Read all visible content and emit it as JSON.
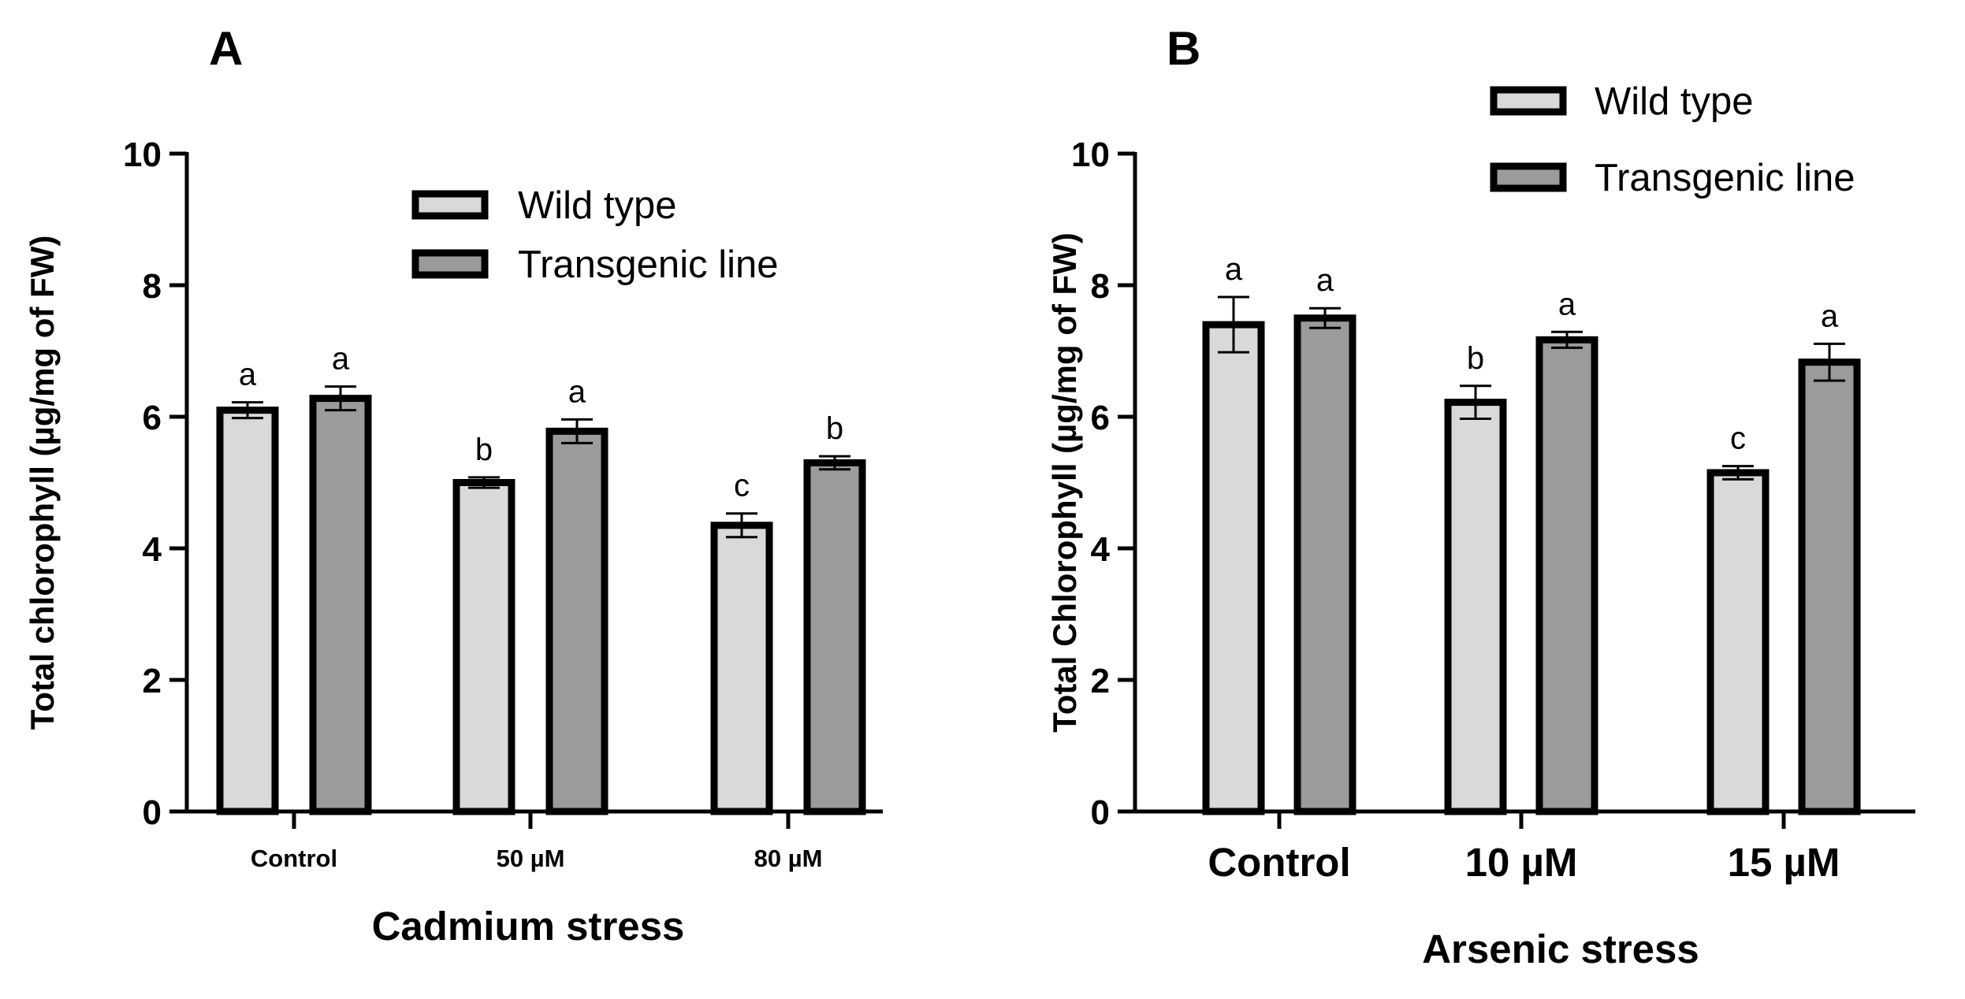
{
  "series_colors": {
    "Wild type": "#d9d9d9",
    "Transgenic line": "#9b9b9b"
  },
  "chart_data": [
    {
      "panel": "A",
      "type": "bar",
      "xlabel": "Cadmium stress",
      "ylabel": "Total chlorophyll (µg/mg of FW)",
      "ylim": [
        0,
        10
      ],
      "yticks": [
        "0",
        "2",
        "4",
        "6",
        "8",
        "10"
      ],
      "categories": [
        "Control",
        "50 µM",
        "80 µM"
      ],
      "legend_position": "upper-middle",
      "series": [
        {
          "name": "Wild type",
          "values": [
            6.1,
            5.0,
            4.35
          ],
          "errors": [
            0.12,
            0.08,
            0.18
          ],
          "labels": [
            "a",
            "b",
            "c"
          ]
        },
        {
          "name": "Transgenic line",
          "values": [
            6.28,
            5.78,
            5.3
          ],
          "errors": [
            0.18,
            0.18,
            0.1
          ],
          "labels": [
            "a",
            "a",
            "b"
          ]
        }
      ]
    },
    {
      "panel": "B",
      "type": "bar",
      "xlabel": "Arsenic stress",
      "ylabel": "Total Chlorophyll (µg/mg of FW)",
      "ylim": [
        0,
        10
      ],
      "yticks": [
        "0",
        "2",
        "4",
        "6",
        "8",
        "10"
      ],
      "categories": [
        "Control",
        "10 µM",
        "15 µM"
      ],
      "legend_position": "top-right",
      "series": [
        {
          "name": "Wild type",
          "values": [
            7.4,
            6.22,
            5.15
          ],
          "errors": [
            0.42,
            0.25,
            0.1
          ],
          "labels": [
            "a",
            "b",
            "c"
          ]
        },
        {
          "name": "Transgenic line",
          "values": [
            7.5,
            7.17,
            6.83
          ],
          "errors": [
            0.15,
            0.12,
            0.28
          ],
          "labels": [
            "a",
            "a",
            "a"
          ]
        }
      ]
    }
  ]
}
